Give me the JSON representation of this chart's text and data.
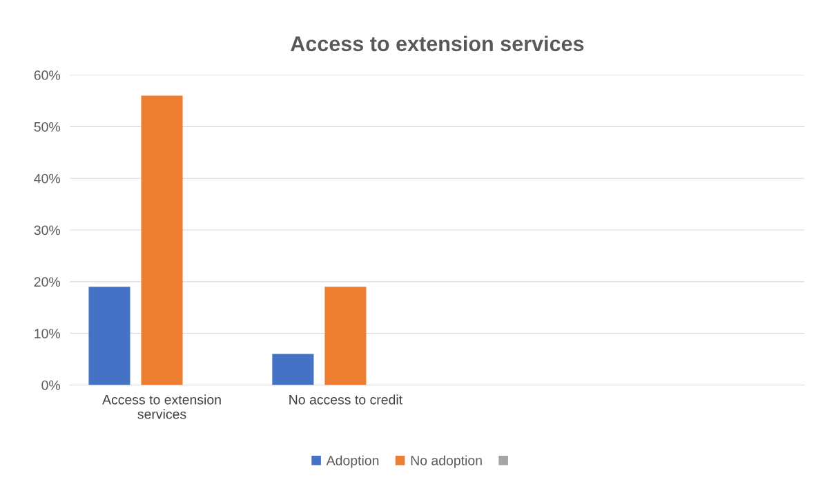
{
  "chart_data": {
    "type": "bar",
    "title": "Access to extension services",
    "categories": [
      "Access to extension services",
      "No access to credit",
      null,
      null
    ],
    "series": [
      {
        "name": "Adoption",
        "color": "#4472c4",
        "values": [
          19,
          6,
          null,
          null
        ]
      },
      {
        "name": "No adoption",
        "color": "#ed7d31",
        "values": [
          56,
          19,
          null,
          null
        ]
      },
      {
        "color": "#a5a5a5",
        "values": [
          null,
          null,
          null,
          null
        ]
      }
    ],
    "ylim": [
      0,
      60
    ],
    "yticks": [
      {
        "value": 0,
        "label": "0%"
      },
      {
        "value": 10,
        "label": "10%"
      },
      {
        "value": 20,
        "label": "20%"
      },
      {
        "value": 30,
        "label": "30%"
      },
      {
        "value": 40,
        "label": "40%"
      },
      {
        "value": 50,
        "label": "50%"
      },
      {
        "value": 60,
        "label": "60%"
      }
    ],
    "grid": "y",
    "legend": "bottom"
  }
}
